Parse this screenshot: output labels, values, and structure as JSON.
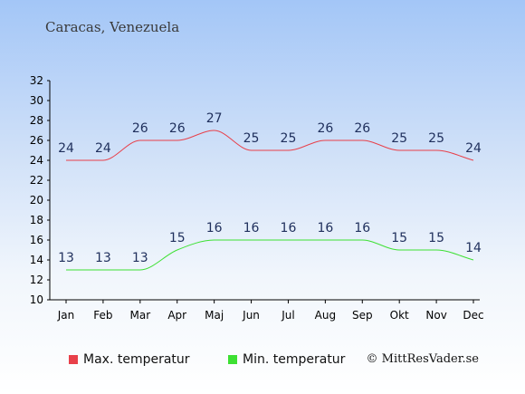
{
  "chart_data": {
    "type": "line",
    "title": "Caracas, Venezuela",
    "categories": [
      "Jan",
      "Feb",
      "Mar",
      "Apr",
      "Maj",
      "Jun",
      "Jul",
      "Aug",
      "Sep",
      "Okt",
      "Nov",
      "Dec"
    ],
    "series": [
      {
        "name": "Max. temperatur",
        "color": "#e8404a",
        "values": [
          24,
          24,
          26,
          26,
          27,
          25,
          25,
          26,
          26,
          25,
          25,
          24
        ]
      },
      {
        "name": "Min. temperatur",
        "color": "#3de033",
        "values": [
          13,
          13,
          13,
          15,
          16,
          16,
          16,
          16,
          16,
          15,
          15,
          14
        ]
      }
    ],
    "ylim": [
      10,
      32
    ],
    "yticks": [
      10,
      12,
      14,
      16,
      18,
      20,
      22,
      24,
      26,
      28,
      30,
      32
    ],
    "grid": false,
    "legend": "bottom-left",
    "label_color": "#1f2f5c"
  },
  "credit": "© MittResVader.se"
}
